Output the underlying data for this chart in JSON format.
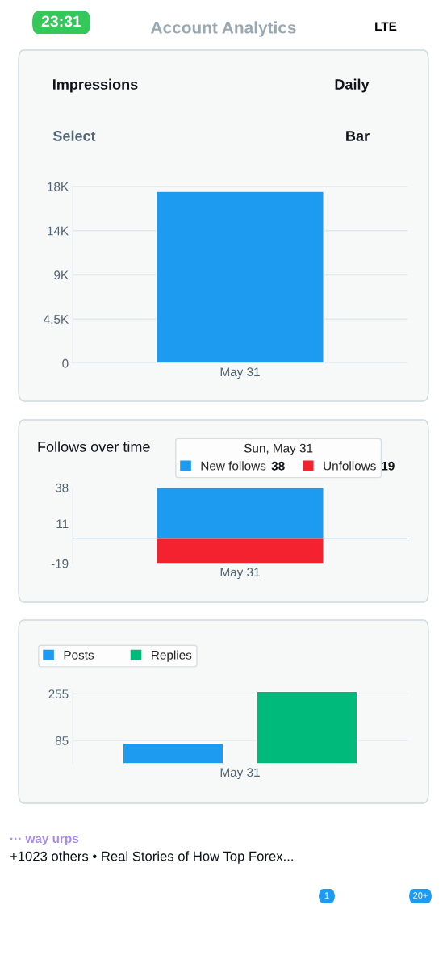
{
  "chart_data": [
    {
      "type": "bar",
      "categories": [
        "May 31"
      ],
      "series": [
        {
          "color": "#1d9bf0",
          "values": [
            17500
          ]
        }
      ],
      "ylim": [
        0,
        18000
      ],
      "yticks": [
        0,
        {
          "value": 4500,
          "label": "4.5K"
        },
        {
          "value": 9000,
          "label": "9K"
        },
        {
          "value": 13500,
          "label": "14K"
        },
        {
          "value": 18000,
          "label": "18K"
        }
      ],
      "grid": "y",
      "annotations": [
        "23:31",
        "LTE",
        "Account Analytics",
        "Impressions",
        "Daily",
        "Select",
        "Bar"
      ]
    },
    {
      "type": "bar",
      "title": "Follows over time",
      "categories": [
        "May 31"
      ],
      "stacked": true,
      "series": [
        {
          "name": "New follows",
          "color": "#1d9bf0",
          "values": [
            38
          ]
        },
        {
          "name": "Unfollows",
          "color": "#f4212e",
          "values": [
            -19
          ]
        }
      ],
      "annotations": [
        "38",
        "19"
      ],
      "ylim": [
        -19,
        38
      ],
      "yticks": [
        -19,
        11,
        38
      ],
      "ref_lines": [
        {
          "axis": "y",
          "value": 0,
          "color": "#9fb3c8"
        }
      ],
      "legend": "top right",
      "legend_title": "Sun, May 31"
    },
    {
      "type": "bar",
      "categories": [
        "May 31"
      ],
      "series": [
        {
          "name": "Posts",
          "color": "#1d9bf0",
          "values": [
            75
          ]
        },
        {
          "name": "Replies",
          "color": "#00ba7c",
          "values": [
            264
          ]
        }
      ],
      "ylim": [
        0,
        265
      ],
      "yticks": [
        85,
        255
      ],
      "grid": "y",
      "legend": "top left",
      "annotations": [
        "··· way urps",
        "+1023 others • Real Stories of How Top Forex...",
        "1",
        "20+"
      ]
    }
  ]
}
